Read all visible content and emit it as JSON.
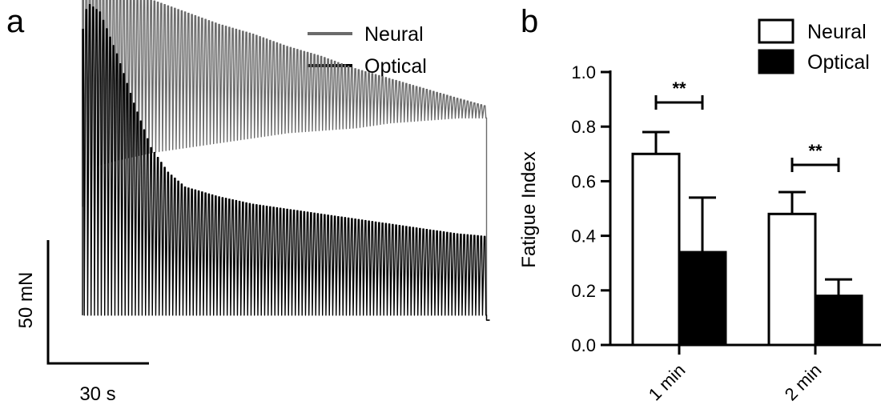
{
  "panels": {
    "a": "a",
    "b": "b"
  },
  "panel_a": {
    "legend": [
      "Neural",
      "Optical"
    ],
    "scale_bar": {
      "vertical_label": "50 mN",
      "horizontal_label": "30 s"
    },
    "colors": {
      "neural": "#6b6b6b",
      "optical": "#000000"
    }
  },
  "chart_data": [
    {
      "type": "line",
      "panel": "a",
      "description_series": [
        {
          "name": "Neural",
          "color": "#6b6b6b",
          "x_s": [
            0,
            1,
            2,
            10,
            20,
            30,
            40,
            50,
            60,
            70,
            80,
            90,
            100,
            110,
            118
          ],
          "peak_mN": [
            140,
            143,
            142,
            135,
            130,
            125,
            120,
            116,
            111,
            107,
            102,
            98,
            94,
            90,
            87
          ],
          "trough_mN": [
            46,
            60,
            62,
            65,
            68,
            70,
            72,
            74,
            76,
            77,
            78,
            80,
            81,
            82,
            82
          ]
        },
        {
          "name": "Optical",
          "color": "#000000",
          "x_s": [
            0,
            1,
            2,
            5,
            10,
            15,
            20,
            25,
            30,
            40,
            50,
            60,
            70,
            80,
            90,
            100,
            110,
            118
          ],
          "peak_mN": [
            118,
            126,
            128,
            125,
            108,
            88,
            70,
            60,
            54,
            50,
            47,
            45,
            43,
            41,
            39,
            37,
            35,
            34
          ],
          "trough_mN": [
            2,
            2,
            2,
            2,
            2,
            2,
            2,
            2,
            2,
            2,
            2,
            2,
            2,
            2,
            2,
            2,
            2,
            2
          ]
        }
      ]
    },
    {
      "type": "bar",
      "panel": "b",
      "categories": [
        "1 min",
        "2 min"
      ],
      "series": [
        {
          "name": "Neural",
          "values": [
            0.7,
            0.48
          ],
          "errors": [
            0.08,
            0.08
          ],
          "fill": "#ffffff"
        },
        {
          "name": "Optical",
          "values": [
            0.34,
            0.18
          ],
          "errors": [
            0.2,
            0.06
          ],
          "fill": "#000000"
        }
      ],
      "ylabel": "Fatigue Index",
      "ylim": [
        0,
        1.0
      ],
      "yticks": [
        "0.0",
        "0.2",
        "0.4",
        "0.6",
        "0.8",
        "1.0"
      ],
      "significance": [
        "**",
        "**"
      ],
      "legend": "top-right"
    }
  ]
}
